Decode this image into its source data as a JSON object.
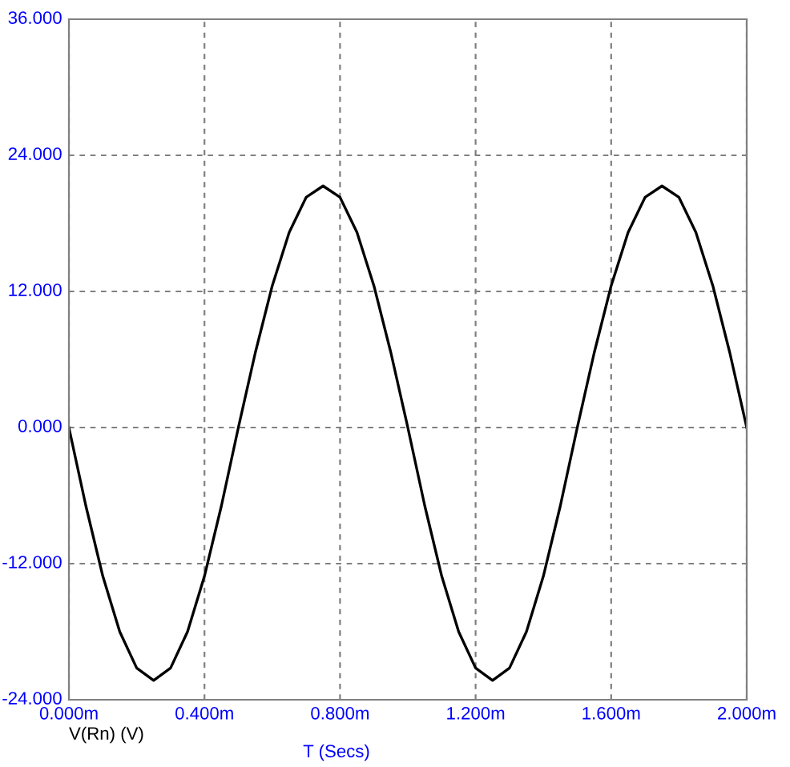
{
  "chart_data": {
    "type": "line",
    "xlabel": "T (Secs)",
    "annotations": [
      "V(Rn) (V)"
    ],
    "x": [
      0,
      0.05,
      0.1,
      0.15,
      0.2,
      0.25,
      0.3,
      0.35,
      0.4,
      0.45,
      0.5,
      0.55,
      0.6,
      0.65,
      0.7,
      0.75,
      0.8,
      0.85,
      0.9,
      0.95,
      1.0,
      1.05,
      1.1,
      1.15,
      1.2,
      1.25,
      1.3,
      1.35,
      1.4,
      1.45,
      1.5,
      1.55,
      1.6,
      1.65,
      1.7,
      1.75,
      1.8,
      1.85,
      1.9,
      1.95,
      2.0
    ],
    "series": [
      {
        "color": "#000000",
        "values": [
          0,
          -6.9,
          -13.1,
          -18.0,
          -21.2,
          -22.3,
          -21.2,
          -18.0,
          -13.1,
          -6.9,
          0,
          6.6,
          12.5,
          17.2,
          20.3,
          21.3,
          20.3,
          17.2,
          12.5,
          6.6,
          0,
          -6.9,
          -13.1,
          -18.0,
          -21.2,
          -22.3,
          -21.2,
          -18.0,
          -13.1,
          -6.9,
          0,
          6.6,
          12.5,
          17.2,
          20.3,
          21.3,
          20.3,
          17.2,
          12.5,
          6.6,
          0
        ]
      }
    ],
    "xlim": [
      0,
      2.0
    ],
    "ylim": [
      -24,
      36
    ],
    "xticks": [
      {
        "value": 0,
        "label": "0.000m"
      },
      {
        "value": 0.4,
        "label": "0.400m"
      },
      {
        "value": 0.8,
        "label": "0.800m"
      },
      {
        "value": 1.2,
        "label": "1.200m"
      },
      {
        "value": 1.6,
        "label": "1.600m"
      },
      {
        "value": 2.0,
        "label": "2.000m"
      }
    ],
    "yticks": [
      {
        "value": -24,
        "label": "-24.000"
      },
      {
        "value": -12,
        "label": "-12.000"
      },
      {
        "value": 0,
        "label": "0.000"
      },
      {
        "value": 12,
        "label": "12.000"
      },
      {
        "value": 24,
        "label": "24.000"
      },
      {
        "value": 36,
        "label": "36.000"
      }
    ],
    "grid": true,
    "marker": "none",
    "line_style": "solid"
  }
}
